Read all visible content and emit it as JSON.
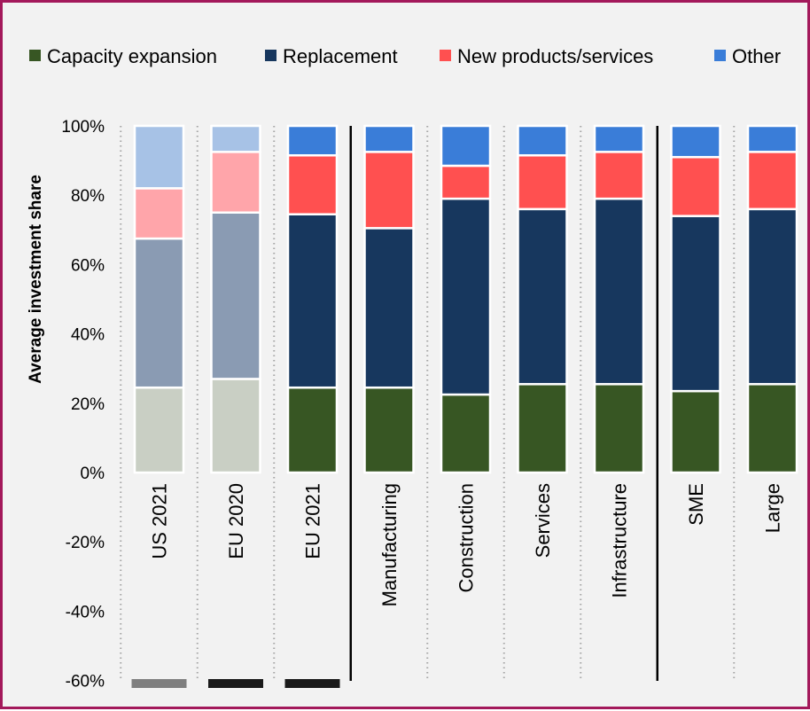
{
  "chart_data": {
    "type": "bar",
    "stacked": true,
    "ylabel": "Average investment share",
    "ylim": [
      -60,
      100
    ],
    "yticks": [
      100,
      80,
      60,
      40,
      20,
      0,
      -20,
      -40,
      -60
    ],
    "ytick_labels": [
      "100%",
      "80%",
      "60%",
      "40%",
      "20%",
      "0%",
      "-20%",
      "-40%",
      "-60%"
    ],
    "categories": [
      "US 2021",
      "EU 2020",
      "EU 2021",
      "Manufacturing",
      "Construction",
      "Services",
      "Infrastructure",
      "SME",
      "Large"
    ],
    "legend_position": "top",
    "series": [
      {
        "name": "Capacity expansion",
        "color": "#375623",
        "faded_color": "#c9cfc4",
        "values": [
          24.5,
          27,
          24.5,
          24.5,
          22.5,
          25.5,
          25.5,
          23.5,
          25.5
        ]
      },
      {
        "name": "Replacement",
        "color": "#17375e",
        "faded_color": "#8a9bb3",
        "values": [
          43,
          48,
          50,
          46,
          56.5,
          50.5,
          53.5,
          50.5,
          50.5
        ]
      },
      {
        "name": "New products/services",
        "color": "#ff5050",
        "faded_color": "#ffa5aa",
        "values": [
          14.5,
          17.5,
          17,
          22,
          9.5,
          15.5,
          13.5,
          17,
          16.5
        ]
      },
      {
        "name": "Other",
        "color": "#3a7dd8",
        "faded_color": "#a7c2e6",
        "values": [
          18,
          7.5,
          8.5,
          7.5,
          11.5,
          8.5,
          7.5,
          9,
          7.5
        ]
      }
    ],
    "faded_categories": [
      "US 2021",
      "EU 2020"
    ],
    "separators_after": [
      "EU 2021",
      "Infrastructure"
    ],
    "bottom_markers": [
      {
        "category": "US 2021",
        "color": "#7f7f7f"
      },
      {
        "category": "EU 2020",
        "color": "#1a1a1a"
      },
      {
        "category": "EU 2021",
        "color": "#1a1a1a"
      }
    ]
  }
}
